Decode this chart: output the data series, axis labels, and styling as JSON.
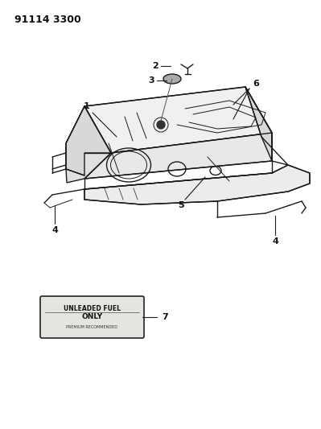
{
  "title": "91114 3300",
  "bg_color": "#ffffff",
  "line_color": "#1a1a1a",
  "label_color": "#111111",
  "sticker_text_line1": "UNLEADED FUEL",
  "sticker_text_line2": "ONLY",
  "sticker_text_line3": "PREMIUM RECOMMENDED",
  "figsize": [
    3.99,
    5.33
  ],
  "dpi": 100
}
